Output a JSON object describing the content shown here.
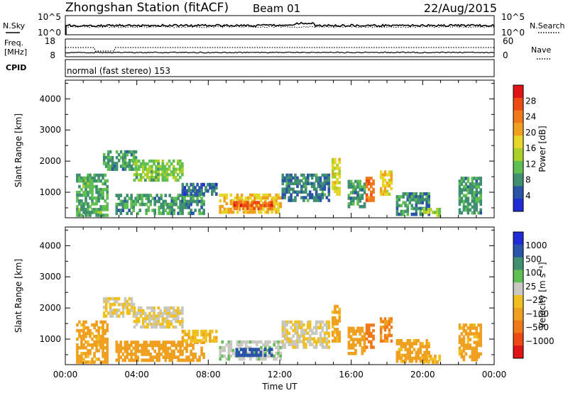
{
  "header": {
    "station": "Zhongshan Station (fitACF)",
    "beam": "Beam 01",
    "date": "22/Aug/2015"
  },
  "status_panels": {
    "noise": {
      "left_label": "N.Sky",
      "left_ticks": [
        "10^5",
        "10^0"
      ],
      "right_label": "N.Search",
      "right_ticks": [
        "10^5",
        "10^0"
      ]
    },
    "frequency": {
      "left_label_line1": "Freq.",
      "left_label_line2": "[MHz]",
      "left_ticks": [
        "18",
        "8"
      ],
      "right_label": "Nave",
      "right_ticks": [
        "60",
        "0"
      ]
    },
    "cpid": {
      "label": "CPID",
      "text": "normal (fast stereo) 153"
    }
  },
  "colors": {
    "power": [
      "#1f2bd4",
      "#2a54a8",
      "#3f8f70",
      "#5fbf52",
      "#a9d12a",
      "#e6d62a",
      "#f0a020",
      "#f07a1a",
      "#ee4a14",
      "#e01414"
    ],
    "velocity": [
      "#1f2bd4",
      "#2a54a8",
      "#3f8f70",
      "#5fbf52",
      "#c8c8c0",
      "#f0c020",
      "#f0a020",
      "#f07a1a",
      "#ee4a14",
      "#e01414"
    ]
  },
  "chart_data": [
    {
      "type": "heatmap",
      "title": "",
      "xlabel": "Time UT",
      "ylabel": "Slant Range [km]",
      "x_ticks": [
        "00:00",
        "04:00",
        "08:00",
        "12:00",
        "16:00",
        "20:00",
        "00:00"
      ],
      "xlim_hours": [
        0,
        24
      ],
      "y_ticks": [
        1000,
        2000,
        3000,
        4000
      ],
      "ylim": [
        180,
        4600
      ],
      "colorbar": {
        "label": "Power [dB]",
        "ticks": [
          "28",
          "24",
          "20",
          "16",
          "12",
          "8",
          "4"
        ],
        "range": [
          0,
          32
        ]
      },
      "regions": [
        {
          "t": [
            0.6,
            2.4
          ],
          "r": [
            220,
            1600
          ],
          "v": 10
        },
        {
          "t": [
            2.1,
            4.0
          ],
          "r": [
            1700,
            2350
          ],
          "v": 9
        },
        {
          "t": [
            3.8,
            6.6
          ],
          "r": [
            1350,
            2050
          ],
          "v": 12
        },
        {
          "t": [
            2.8,
            7.8
          ],
          "r": [
            280,
            950
          ],
          "v": 9
        },
        {
          "t": [
            6.5,
            8.5
          ],
          "r": [
            900,
            1300
          ],
          "v": 6
        },
        {
          "t": [
            8.6,
            12.1
          ],
          "r": [
            320,
            960
          ],
          "v": 19
        },
        {
          "t": [
            9.4,
            11.6
          ],
          "r": [
            440,
            720
          ],
          "v": 26
        },
        {
          "t": [
            12.1,
            14.8
          ],
          "r": [
            700,
            1600
          ],
          "v": 7
        },
        {
          "t": [
            14.9,
            15.4
          ],
          "r": [
            900,
            2100
          ],
          "v": 17
        },
        {
          "t": [
            15.8,
            16.8
          ],
          "r": [
            500,
            1400
          ],
          "v": 9
        },
        {
          "t": [
            16.8,
            17.3
          ],
          "r": [
            700,
            1500
          ],
          "v": 25
        },
        {
          "t": [
            17.6,
            18.3
          ],
          "r": [
            900,
            1700
          ],
          "v": 18
        },
        {
          "t": [
            18.5,
            20.4
          ],
          "r": [
            250,
            1000
          ],
          "v": 8
        },
        {
          "t": [
            20.0,
            21.0
          ],
          "r": [
            220,
            500
          ],
          "v": 14
        },
        {
          "t": [
            22.0,
            23.3
          ],
          "r": [
            300,
            1500
          ],
          "v": 9
        }
      ]
    },
    {
      "type": "heatmap",
      "title": "",
      "xlabel": "Time UT",
      "ylabel": "Slant Range [km]",
      "x_ticks": [
        "00:00",
        "04:00",
        "08:00",
        "12:00",
        "16:00",
        "20:00",
        "00:00"
      ],
      "xlim_hours": [
        0,
        24
      ],
      "y_ticks": [
        1000,
        2000,
        3000,
        4000
      ],
      "ylim": [
        180,
        4600
      ],
      "colorbar": {
        "label": "Velocity [m s⁻¹]",
        "ticks": [
          "1000",
          "500",
          "100",
          "25",
          "−25",
          "−100",
          "−500",
          "−1000"
        ],
        "range": [
          -1200,
          1200
        ]
      },
      "regions": [
        {
          "t": [
            0.6,
            2.4
          ],
          "r": [
            220,
            1600
          ],
          "v": -300
        },
        {
          "t": [
            2.1,
            4.0
          ],
          "r": [
            1700,
            2350
          ],
          "v": 0
        },
        {
          "t": [
            3.8,
            6.6
          ],
          "r": [
            1350,
            2050
          ],
          "v": 0
        },
        {
          "t": [
            2.8,
            7.8
          ],
          "r": [
            280,
            950
          ],
          "v": -400
        },
        {
          "t": [
            6.5,
            8.5
          ],
          "r": [
            900,
            1300
          ],
          "v": -200
        },
        {
          "t": [
            8.6,
            12.1
          ],
          "r": [
            320,
            960
          ],
          "v": 200
        },
        {
          "t": [
            9.4,
            11.6
          ],
          "r": [
            440,
            720
          ],
          "v": 800
        },
        {
          "t": [
            12.1,
            14.8
          ],
          "r": [
            700,
            1600
          ],
          "v": 10
        },
        {
          "t": [
            14.9,
            15.4
          ],
          "r": [
            900,
            2100
          ],
          "v": -300
        },
        {
          "t": [
            15.8,
            16.8
          ],
          "r": [
            500,
            1400
          ],
          "v": -400
        },
        {
          "t": [
            16.8,
            17.3
          ],
          "r": [
            700,
            1500
          ],
          "v": -600
        },
        {
          "t": [
            17.6,
            18.3
          ],
          "r": [
            900,
            1700
          ],
          "v": -500
        },
        {
          "t": [
            18.5,
            20.4
          ],
          "r": [
            250,
            1000
          ],
          "v": -300
        },
        {
          "t": [
            20.0,
            21.0
          ],
          "r": [
            220,
            500
          ],
          "v": -200
        },
        {
          "t": [
            22.0,
            23.3
          ],
          "r": [
            300,
            1500
          ],
          "v": -300
        }
      ]
    }
  ]
}
